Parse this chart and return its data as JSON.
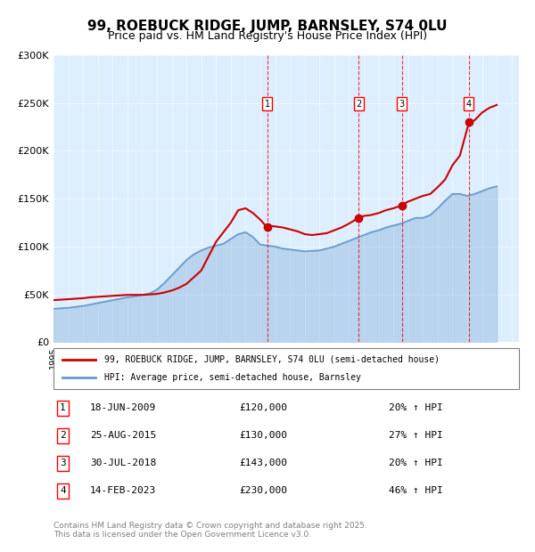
{
  "title": "99, ROEBUCK RIDGE, JUMP, BARNSLEY, S74 0LU",
  "subtitle": "Price paid vs. HM Land Registry's House Price Index (HPI)",
  "title_fontsize": 11,
  "subtitle_fontsize": 9,
  "background_color": "#ffffff",
  "plot_bg_color": "#ddeeff",
  "legend_label_property": "99, ROEBUCK RIDGE, JUMP, BARNSLEY, S74 0LU (semi-detached house)",
  "legend_label_hpi": "HPI: Average price, semi-detached house, Barnsley",
  "property_color": "#cc0000",
  "hpi_color": "#6699cc",
  "footer": "Contains HM Land Registry data © Crown copyright and database right 2025.\nThis data is licensed under the Open Government Licence v3.0.",
  "ylim": [
    0,
    300000
  ],
  "xlim_start": 1995.0,
  "xlim_end": 2026.5,
  "yticks": [
    0,
    50000,
    100000,
    150000,
    200000,
    250000,
    300000
  ],
  "ytick_labels": [
    "£0",
    "£50K",
    "£100K",
    "£150K",
    "£200K",
    "£250K",
    "£300K"
  ],
  "transactions": [
    {
      "num": 1,
      "date": "18-JUN-2009",
      "price": 120000,
      "pct": "20%",
      "x_year": 2009.46
    },
    {
      "num": 2,
      "date": "25-AUG-2015",
      "price": 130000,
      "pct": "27%",
      "x_year": 2015.65
    },
    {
      "num": 3,
      "date": "30-JUL-2018",
      "price": 143000,
      "pct": "20%",
      "x_year": 2018.58
    },
    {
      "num": 4,
      "date": "14-FEB-2023",
      "price": 230000,
      "pct": "46%",
      "x_year": 2023.12
    }
  ],
  "property_line": {
    "x": [
      1995.0,
      1995.5,
      1996.0,
      1996.5,
      1997.0,
      1997.5,
      1998.0,
      1998.5,
      1999.0,
      1999.5,
      2000.0,
      2000.5,
      2001.0,
      2001.5,
      2002.0,
      2002.5,
      2003.0,
      2003.5,
      2004.0,
      2004.5,
      2005.0,
      2005.5,
      2006.0,
      2006.5,
      2007.0,
      2007.5,
      2008.0,
      2008.5,
      2009.0,
      2009.46,
      2009.5,
      2010.0,
      2010.5,
      2011.0,
      2011.5,
      2012.0,
      2012.5,
      2013.0,
      2013.5,
      2014.0,
      2014.5,
      2015.0,
      2015.65,
      2015.5,
      2016.0,
      2016.5,
      2017.0,
      2017.5,
      2018.0,
      2018.58,
      2018.5,
      2019.0,
      2019.5,
      2020.0,
      2020.5,
      2021.0,
      2021.5,
      2022.0,
      2022.5,
      2023.12,
      2023.0,
      2023.5,
      2024.0,
      2024.5,
      2025.0
    ],
    "y": [
      44000,
      44500,
      45000,
      45500,
      46000,
      47000,
      47500,
      48000,
      48500,
      49000,
      49500,
      49500,
      49500,
      50000,
      50500,
      52000,
      54000,
      57000,
      61000,
      68000,
      75000,
      90000,
      105000,
      115000,
      125000,
      138000,
      140000,
      135000,
      128000,
      120000,
      122000,
      121000,
      120000,
      118000,
      116000,
      113000,
      112000,
      113000,
      114000,
      117000,
      120000,
      124000,
      130000,
      128000,
      132000,
      133000,
      135000,
      138000,
      140000,
      143000,
      143000,
      147000,
      150000,
      153000,
      155000,
      162000,
      170000,
      185000,
      195000,
      230000,
      228000,
      232000,
      240000,
      245000,
      248000
    ]
  },
  "hpi_line": {
    "x": [
      1995.0,
      1995.5,
      1996.0,
      1996.5,
      1997.0,
      1997.5,
      1998.0,
      1998.5,
      1999.0,
      1999.5,
      2000.0,
      2000.5,
      2001.0,
      2001.5,
      2002.0,
      2002.5,
      2003.0,
      2003.5,
      2004.0,
      2004.5,
      2005.0,
      2005.5,
      2006.0,
      2006.5,
      2007.0,
      2007.5,
      2008.0,
      2008.5,
      2009.0,
      2009.5,
      2010.0,
      2010.5,
      2011.0,
      2011.5,
      2012.0,
      2012.5,
      2013.0,
      2013.5,
      2014.0,
      2014.5,
      2015.0,
      2015.5,
      2016.0,
      2016.5,
      2017.0,
      2017.5,
      2018.0,
      2018.5,
      2019.0,
      2019.5,
      2020.0,
      2020.5,
      2021.0,
      2021.5,
      2022.0,
      2022.5,
      2023.0,
      2023.5,
      2024.0,
      2024.5,
      2025.0
    ],
    "y": [
      35000,
      35500,
      36000,
      37000,
      38000,
      39500,
      41000,
      42500,
      44000,
      45500,
      47000,
      48000,
      49500,
      51000,
      55000,
      62000,
      70000,
      78000,
      86000,
      92000,
      96000,
      99000,
      101000,
      103000,
      108000,
      113000,
      115000,
      110000,
      102000,
      101000,
      100000,
      98000,
      97000,
      96000,
      95000,
      95500,
      96000,
      98000,
      100000,
      103000,
      106000,
      109000,
      112000,
      115000,
      117000,
      120000,
      122000,
      124000,
      127000,
      130000,
      130000,
      133000,
      140000,
      148000,
      155000,
      155000,
      153000,
      155000,
      158000,
      161000,
      163000
    ]
  }
}
